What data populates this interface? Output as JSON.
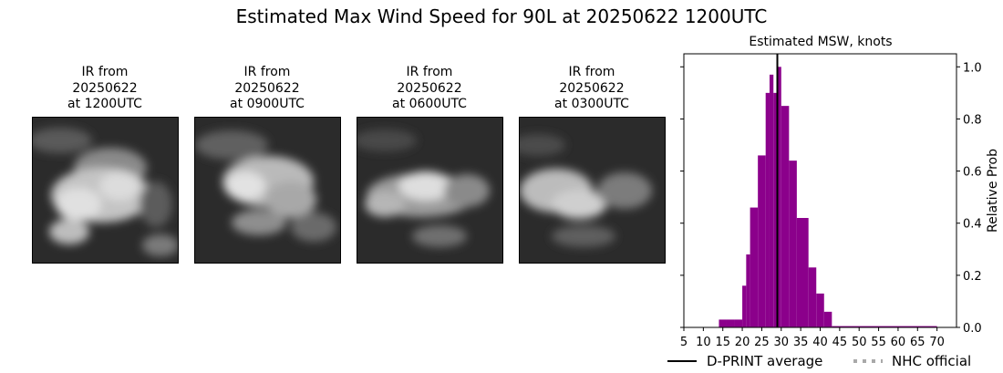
{
  "figure": {
    "title": "Estimated Max Wind Speed for 90L at 20250622 1200UTC"
  },
  "panels": [
    {
      "line1": "IR from",
      "line2": "20250622",
      "line3": "at 1200UTC"
    },
    {
      "line1": "IR from",
      "line2": "20250622",
      "line3": "at 0900UTC"
    },
    {
      "line1": "IR from",
      "line2": "20250622",
      "line3": "at 0600UTC"
    },
    {
      "line1": "IR from",
      "line2": "20250622",
      "line3": "at 0300UTC"
    }
  ],
  "chart_data": {
    "type": "bar",
    "title": "Estimated MSW, knots",
    "xlabel": "",
    "ylabel": "Relative Prob",
    "xlim": [
      5,
      75
    ],
    "ylim": [
      0,
      1.05
    ],
    "x_ticks": [
      5,
      10,
      15,
      20,
      25,
      30,
      35,
      40,
      45,
      50,
      55,
      60,
      65,
      70
    ],
    "y_ticks": [
      0.0,
      0.2,
      0.4,
      0.6,
      0.8,
      1.0
    ],
    "y_tick_labels": [
      "0.0",
      "0.2",
      "0.4",
      "0.6",
      "0.8",
      "1.0"
    ],
    "bar_color": "#8b008b",
    "bins": [
      {
        "x0": 14,
        "x1": 16,
        "value": 0.03
      },
      {
        "x0": 16,
        "x1": 18,
        "value": 0.03
      },
      {
        "x0": 18,
        "x1": 20,
        "value": 0.03
      },
      {
        "x0": 20,
        "x1": 21,
        "value": 0.16
      },
      {
        "x0": 21,
        "x1": 22,
        "value": 0.28
      },
      {
        "x0": 22,
        "x1": 24,
        "value": 0.46
      },
      {
        "x0": 24,
        "x1": 26,
        "value": 0.66
      },
      {
        "x0": 26,
        "x1": 27,
        "value": 0.9
      },
      {
        "x0": 27,
        "x1": 28,
        "value": 0.97
      },
      {
        "x0": 28,
        "x1": 29,
        "value": 0.9
      },
      {
        "x0": 29,
        "x1": 30,
        "value": 1.0
      },
      {
        "x0": 30,
        "x1": 32,
        "value": 0.85
      },
      {
        "x0": 32,
        "x1": 34,
        "value": 0.64
      },
      {
        "x0": 34,
        "x1": 37,
        "value": 0.42
      },
      {
        "x0": 37,
        "x1": 39,
        "value": 0.23
      },
      {
        "x0": 39,
        "x1": 41,
        "value": 0.13
      },
      {
        "x0": 41,
        "x1": 43,
        "value": 0.06
      },
      {
        "x0": 43,
        "x1": 70,
        "value": 0.005
      }
    ],
    "dprint_average": 29,
    "legend": {
      "placement": "bottom",
      "entries": [
        {
          "label": "D-PRINT average",
          "style": "solid",
          "color": "#000000"
        },
        {
          "label": "NHC official",
          "style": "dotted",
          "color": "#a9a9a9"
        }
      ]
    }
  }
}
